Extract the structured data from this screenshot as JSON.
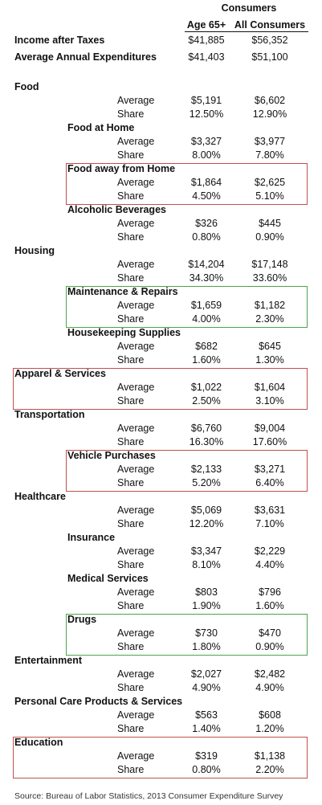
{
  "header": {
    "consumers": "Consumers",
    "col1": "Age 65+",
    "col2": "All Consumers"
  },
  "top": [
    {
      "label": "Income after Taxes",
      "v1": "$41,885",
      "v2": "$56,352"
    },
    {
      "label": "Average Annual Expenditures",
      "v1": "$41,403",
      "v2": "$51,100"
    }
  ],
  "rowlabels": {
    "average": "Average",
    "share": "Share"
  },
  "sections": {
    "food": {
      "title": "Food",
      "avg": [
        "$5,191",
        "$6,602"
      ],
      "share": [
        "12.50%",
        "12.90%"
      ]
    },
    "food_home": {
      "title": "Food at Home",
      "avg": [
        "$3,327",
        "$3,977"
      ],
      "share": [
        "8.00%",
        "7.80%"
      ]
    },
    "food_away": {
      "title": "Food away from Home",
      "avg": [
        "$1,864",
        "$2,625"
      ],
      "share": [
        "4.50%",
        "5.10%"
      ]
    },
    "alcohol": {
      "title": "Alcoholic Beverages",
      "avg": [
        "$326",
        "$445"
      ],
      "share": [
        "0.80%",
        "0.90%"
      ]
    },
    "housing": {
      "title": "Housing",
      "avg": [
        "$14,204",
        "$17,148"
      ],
      "share": [
        "34.30%",
        "33.60%"
      ]
    },
    "maintenance": {
      "title": "Maintenance & Repairs",
      "avg": [
        "$1,659",
        "$1,182"
      ],
      "share": [
        "4.00%",
        "2.30%"
      ]
    },
    "housekeeping": {
      "title": "Housekeeping Supplies",
      "avg": [
        "$682",
        "$645"
      ],
      "share": [
        "1.60%",
        "1.30%"
      ]
    },
    "apparel": {
      "title": "Apparel & Services",
      "avg": [
        "$1,022",
        "$1,604"
      ],
      "share": [
        "2.50%",
        "3.10%"
      ]
    },
    "transportation": {
      "title": "Transportation",
      "avg": [
        "$6,760",
        "$9,004"
      ],
      "share": [
        "16.30%",
        "17.60%"
      ]
    },
    "vehicle": {
      "title": "Vehicle Purchases",
      "avg": [
        "$2,133",
        "$3,271"
      ],
      "share": [
        "5.20%",
        "6.40%"
      ]
    },
    "healthcare": {
      "title": "Healthcare",
      "avg": [
        "$5,069",
        "$3,631"
      ],
      "share": [
        "12.20%",
        "7.10%"
      ]
    },
    "insurance": {
      "title": "Insurance",
      "avg": [
        "$3,347",
        "$2,229"
      ],
      "share": [
        "8.10%",
        "4.40%"
      ]
    },
    "medical": {
      "title": "Medical Services",
      "avg": [
        "$803",
        "$796"
      ],
      "share": [
        "1.90%",
        "1.60%"
      ]
    },
    "drugs": {
      "title": "Drugs",
      "avg": [
        "$730",
        "$470"
      ],
      "share": [
        "1.80%",
        "0.90%"
      ]
    },
    "entertainment": {
      "title": "Entertainment",
      "avg": [
        "$2,027",
        "$2,482"
      ],
      "share": [
        "4.90%",
        "4.90%"
      ]
    },
    "personal": {
      "title": "Personal Care Products & Services",
      "avg": [
        "$563",
        "$608"
      ],
      "share": [
        "1.40%",
        "1.20%"
      ]
    },
    "education": {
      "title": "Education",
      "avg": [
        "$319",
        "$1,138"
      ],
      "share": [
        "0.80%",
        "2.20%"
      ]
    }
  },
  "source": "Source: Bureau of Labor Statistics, 2013 Consumer Expenditure Survey",
  "colors": {
    "highlight_red": "#c0504d",
    "highlight_green": "#4ea24e"
  }
}
